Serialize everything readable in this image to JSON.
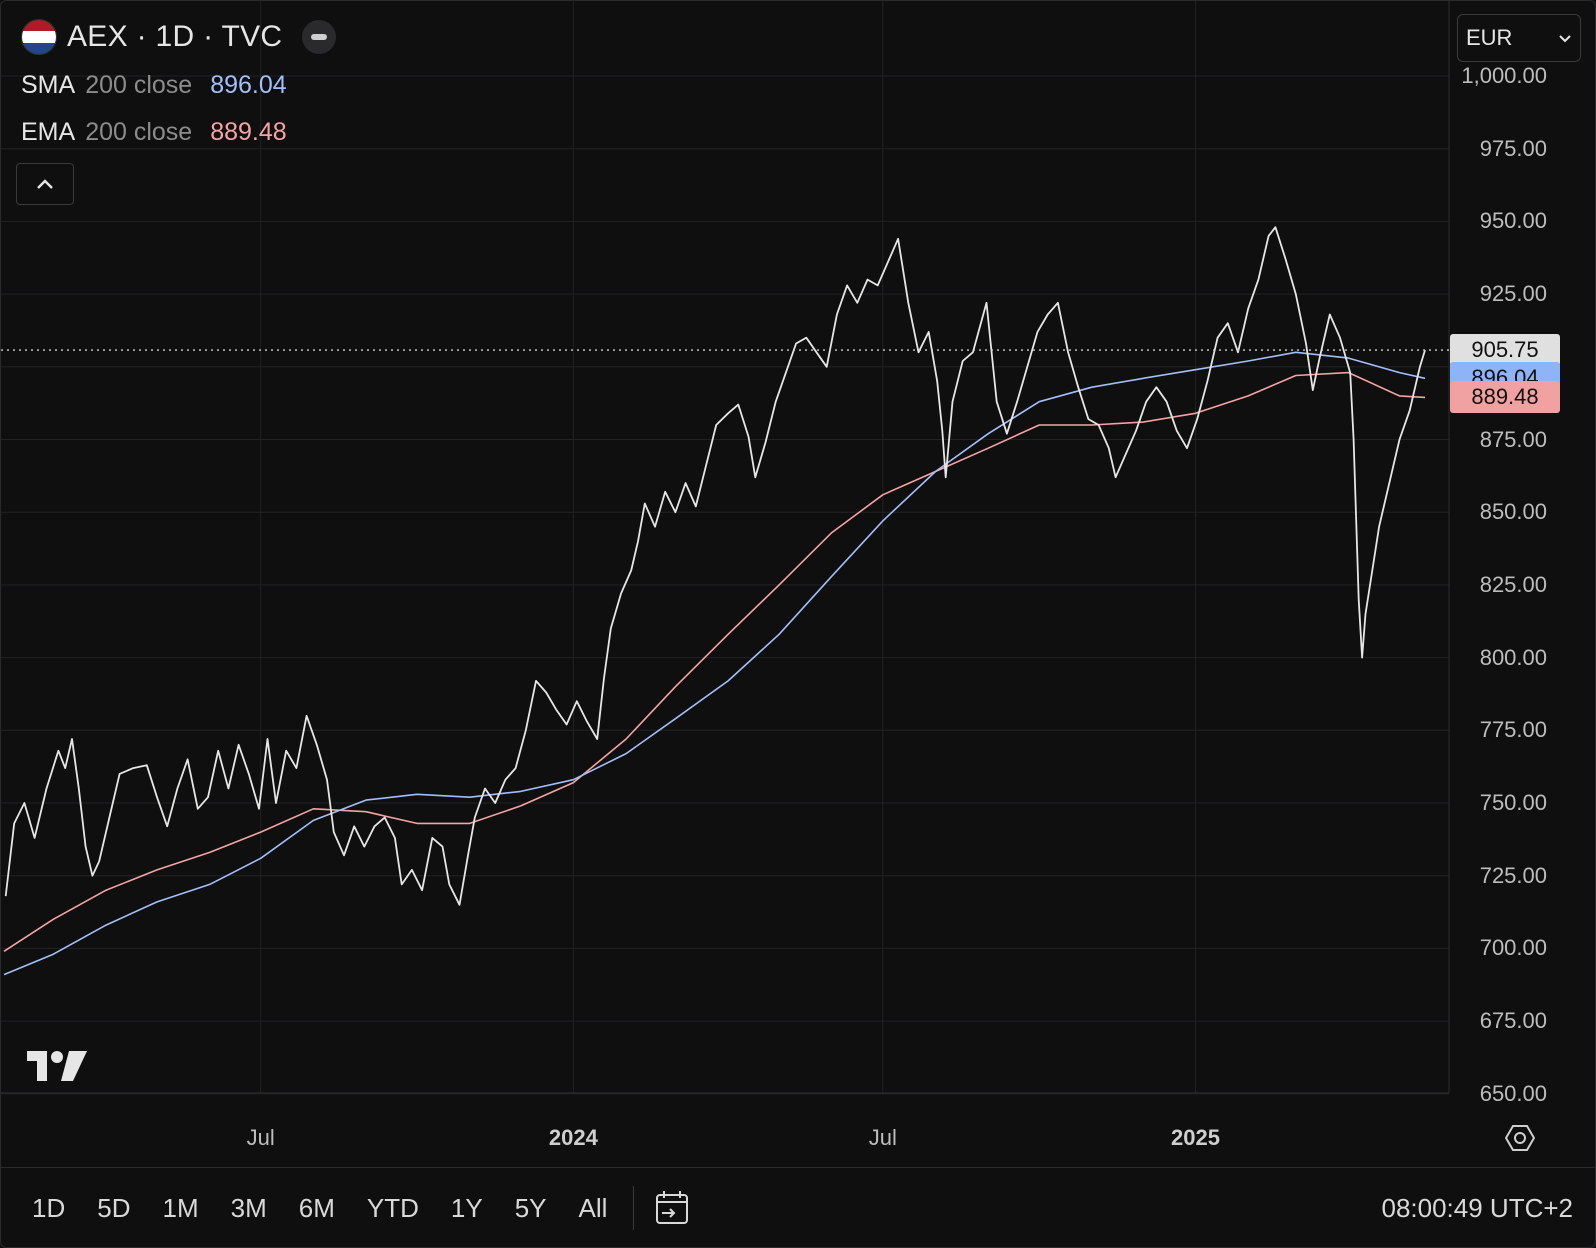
{
  "header": {
    "symbol_title": "AEX · 1D · TVC",
    "flag_colors": [
      "#ae1c28",
      "#ffffff",
      "#21468b"
    ]
  },
  "indicators": [
    {
      "name": "SMA",
      "params": "200 close",
      "value": "896.04",
      "color": "#a3bffa"
    },
    {
      "name": "EMA",
      "params": "200 close",
      "value": "889.48",
      "color": "#f5a3a3"
    }
  ],
  "currency_select": {
    "value": "EUR"
  },
  "bottom_toolbar": {
    "ranges": [
      "1D",
      "5D",
      "1M",
      "3M",
      "6M",
      "YTD",
      "1Y",
      "5Y",
      "All"
    ],
    "clock": "08:00:49 UTC+2"
  },
  "chart_data": {
    "type": "line",
    "x_axis_labels": [
      {
        "text": "Jul",
        "date": "2023-07-01",
        "major": false
      },
      {
        "text": "2024",
        "date": "2024-01-01",
        "major": true
      },
      {
        "text": "Jul",
        "date": "2024-07-01",
        "major": false
      },
      {
        "text": "2025",
        "date": "2025-01-01",
        "major": true
      }
    ],
    "x_range": [
      "2023-01-31",
      "2025-05-16"
    ],
    "y_ticks": [
      "1,000.00",
      "975.00",
      "950.00",
      "925.00",
      "900.00",
      "875.00",
      "850.00",
      "825.00",
      "800.00",
      "775.00",
      "750.00",
      "725.00",
      "700.00",
      "675.00",
      "650.00"
    ],
    "y_range": [
      646.5,
      1012
    ],
    "grid": true,
    "last_price_label": {
      "value": "905.75",
      "bg": "#e0e0e0",
      "fg": "#111111"
    },
    "series": [
      {
        "name": "AEX",
        "color": "#e6e6e6",
        "points": [
          [
            "2023-02-01",
            718
          ],
          [
            "2023-02-06",
            743
          ],
          [
            "2023-02-12",
            750
          ],
          [
            "2023-02-18",
            738
          ],
          [
            "2023-02-25",
            755
          ],
          [
            "2023-03-04",
            768
          ],
          [
            "2023-03-08",
            762
          ],
          [
            "2023-03-12",
            772
          ],
          [
            "2023-03-16",
            755
          ],
          [
            "2023-03-20",
            735
          ],
          [
            "2023-03-24",
            725
          ],
          [
            "2023-03-28",
            730
          ],
          [
            "2023-04-03",
            745
          ],
          [
            "2023-04-09",
            760
          ],
          [
            "2023-04-17",
            762
          ],
          [
            "2023-04-25",
            763
          ],
          [
            "2023-05-01",
            752
          ],
          [
            "2023-05-07",
            742
          ],
          [
            "2023-05-13",
            755
          ],
          [
            "2023-05-19",
            765
          ],
          [
            "2023-05-25",
            748
          ],
          [
            "2023-05-31",
            752
          ],
          [
            "2023-06-06",
            768
          ],
          [
            "2023-06-12",
            755
          ],
          [
            "2023-06-18",
            770
          ],
          [
            "2023-06-24",
            760
          ],
          [
            "2023-06-30",
            748
          ],
          [
            "2023-07-05",
            772
          ],
          [
            "2023-07-10",
            750
          ],
          [
            "2023-07-16",
            768
          ],
          [
            "2023-07-22",
            762
          ],
          [
            "2023-07-28",
            780
          ],
          [
            "2023-08-03",
            770
          ],
          [
            "2023-08-09",
            758
          ],
          [
            "2023-08-13",
            740
          ],
          [
            "2023-08-19",
            732
          ],
          [
            "2023-08-25",
            742
          ],
          [
            "2023-08-31",
            735
          ],
          [
            "2023-09-06",
            742
          ],
          [
            "2023-09-12",
            745
          ],
          [
            "2023-09-18",
            738
          ],
          [
            "2023-09-22",
            722
          ],
          [
            "2023-09-28",
            727
          ],
          [
            "2023-10-04",
            720
          ],
          [
            "2023-10-10",
            738
          ],
          [
            "2023-10-16",
            735
          ],
          [
            "2023-10-20",
            722
          ],
          [
            "2023-10-26",
            715
          ],
          [
            "2023-10-31",
            732
          ],
          [
            "2023-11-04",
            745
          ],
          [
            "2023-11-10",
            755
          ],
          [
            "2023-11-16",
            750
          ],
          [
            "2023-11-22",
            758
          ],
          [
            "2023-11-28",
            762
          ],
          [
            "2023-12-04",
            775
          ],
          [
            "2023-12-10",
            792
          ],
          [
            "2023-12-16",
            788
          ],
          [
            "2023-12-22",
            782
          ],
          [
            "2023-12-28",
            777
          ],
          [
            "2024-01-03",
            785
          ],
          [
            "2024-01-09",
            778
          ],
          [
            "2024-01-15",
            772
          ],
          [
            "2024-01-19",
            793
          ],
          [
            "2024-01-23",
            810
          ],
          [
            "2024-01-29",
            822
          ],
          [
            "2024-02-04",
            830
          ],
          [
            "2024-02-08",
            840
          ],
          [
            "2024-02-12",
            853
          ],
          [
            "2024-02-18",
            845
          ],
          [
            "2024-02-24",
            857
          ],
          [
            "2024-03-01",
            850
          ],
          [
            "2024-03-07",
            860
          ],
          [
            "2024-03-13",
            852
          ],
          [
            "2024-03-19",
            866
          ],
          [
            "2024-03-25",
            880
          ],
          [
            "2024-04-01",
            884
          ],
          [
            "2024-04-07",
            887
          ],
          [
            "2024-04-13",
            876
          ],
          [
            "2024-04-17",
            862
          ],
          [
            "2024-04-23",
            874
          ],
          [
            "2024-04-29",
            888
          ],
          [
            "2024-05-05",
            898
          ],
          [
            "2024-05-11",
            908
          ],
          [
            "2024-05-17",
            910
          ],
          [
            "2024-05-23",
            905
          ],
          [
            "2024-05-29",
            900
          ],
          [
            "2024-06-04",
            918
          ],
          [
            "2024-06-10",
            928
          ],
          [
            "2024-06-16",
            922
          ],
          [
            "2024-06-22",
            930
          ],
          [
            "2024-06-28",
            928
          ],
          [
            "2024-07-04",
            936
          ],
          [
            "2024-07-10",
            944
          ],
          [
            "2024-07-16",
            922
          ],
          [
            "2024-07-22",
            905
          ],
          [
            "2024-07-28",
            912
          ],
          [
            "2024-08-02",
            895
          ],
          [
            "2024-08-05",
            878
          ],
          [
            "2024-08-07",
            862
          ],
          [
            "2024-08-11",
            888
          ],
          [
            "2024-08-17",
            902
          ],
          [
            "2024-08-23",
            905
          ],
          [
            "2024-08-31",
            922
          ],
          [
            "2024-09-06",
            888
          ],
          [
            "2024-09-12",
            877
          ],
          [
            "2024-09-18",
            888
          ],
          [
            "2024-09-24",
            900
          ],
          [
            "2024-09-30",
            912
          ],
          [
            "2024-10-06",
            918
          ],
          [
            "2024-10-12",
            922
          ],
          [
            "2024-10-18",
            905
          ],
          [
            "2024-10-24",
            893
          ],
          [
            "2024-10-30",
            882
          ],
          [
            "2024-11-05",
            880
          ],
          [
            "2024-11-11",
            872
          ],
          [
            "2024-11-15",
            862
          ],
          [
            "2024-11-21",
            870
          ],
          [
            "2024-11-27",
            878
          ],
          [
            "2024-12-03",
            888
          ],
          [
            "2024-12-09",
            893
          ],
          [
            "2024-12-15",
            888
          ],
          [
            "2024-12-21",
            878
          ],
          [
            "2024-12-27",
            872
          ],
          [
            "2025-01-02",
            882
          ],
          [
            "2025-01-08",
            895
          ],
          [
            "2025-01-14",
            910
          ],
          [
            "2025-01-20",
            915
          ],
          [
            "2025-01-26",
            905
          ],
          [
            "2025-02-01",
            920
          ],
          [
            "2025-02-07",
            930
          ],
          [
            "2025-02-13",
            945
          ],
          [
            "2025-02-17",
            948
          ],
          [
            "2025-02-23",
            937
          ],
          [
            "2025-03-01",
            925
          ],
          [
            "2025-03-07",
            908
          ],
          [
            "2025-03-11",
            892
          ],
          [
            "2025-03-15",
            903
          ],
          [
            "2025-03-21",
            918
          ],
          [
            "2025-03-27",
            910
          ],
          [
            "2025-04-02",
            898
          ],
          [
            "2025-04-04",
            875
          ],
          [
            "2025-04-07",
            820
          ],
          [
            "2025-04-09",
            800
          ],
          [
            "2025-04-11",
            815
          ],
          [
            "2025-04-15",
            830
          ],
          [
            "2025-04-19",
            845
          ],
          [
            "2025-04-25",
            860
          ],
          [
            "2025-05-01",
            875
          ],
          [
            "2025-05-07",
            885
          ],
          [
            "2025-05-13",
            900
          ],
          [
            "2025-05-16",
            905.75
          ]
        ]
      },
      {
        "name": "SMA 200 close",
        "color": "#a3bffa",
        "points": [
          [
            "2023-01-31",
            691
          ],
          [
            "2023-03-01",
            698
          ],
          [
            "2023-04-01",
            708
          ],
          [
            "2023-05-01",
            716
          ],
          [
            "2023-06-01",
            722
          ],
          [
            "2023-07-01",
            731
          ],
          [
            "2023-08-01",
            744
          ],
          [
            "2023-09-01",
            751
          ],
          [
            "2023-10-01",
            753
          ],
          [
            "2023-11-01",
            752
          ],
          [
            "2023-12-01",
            754
          ],
          [
            "2024-01-01",
            758
          ],
          [
            "2024-02-01",
            767
          ],
          [
            "2024-03-01",
            779
          ],
          [
            "2024-04-01",
            792
          ],
          [
            "2024-05-01",
            808
          ],
          [
            "2024-06-01",
            828
          ],
          [
            "2024-07-01",
            847
          ],
          [
            "2024-08-01",
            864
          ],
          [
            "2024-09-01",
            877
          ],
          [
            "2024-10-01",
            888
          ],
          [
            "2024-11-01",
            893
          ],
          [
            "2024-12-01",
            896
          ],
          [
            "2025-01-01",
            899
          ],
          [
            "2025-02-01",
            902
          ],
          [
            "2025-03-01",
            905
          ],
          [
            "2025-04-01",
            903
          ],
          [
            "2025-05-01",
            898
          ],
          [
            "2025-05-16",
            896.04
          ]
        ]
      },
      {
        "name": "EMA 200 close",
        "color": "#f5a3a3",
        "points": [
          [
            "2023-01-31",
            699
          ],
          [
            "2023-03-01",
            710
          ],
          [
            "2023-04-01",
            720
          ],
          [
            "2023-05-01",
            727
          ],
          [
            "2023-06-01",
            733
          ],
          [
            "2023-07-01",
            740
          ],
          [
            "2023-08-01",
            748
          ],
          [
            "2023-09-01",
            747
          ],
          [
            "2023-10-01",
            743
          ],
          [
            "2023-11-01",
            743
          ],
          [
            "2023-12-01",
            749
          ],
          [
            "2024-01-01",
            757
          ],
          [
            "2024-02-01",
            772
          ],
          [
            "2024-03-01",
            790
          ],
          [
            "2024-04-01",
            808
          ],
          [
            "2024-05-01",
            825
          ],
          [
            "2024-06-01",
            843
          ],
          [
            "2024-07-01",
            856
          ],
          [
            "2024-08-01",
            864
          ],
          [
            "2024-09-01",
            872
          ],
          [
            "2024-10-01",
            880
          ],
          [
            "2024-11-01",
            880
          ],
          [
            "2024-12-01",
            881
          ],
          [
            "2025-01-01",
            884
          ],
          [
            "2025-02-01",
            890
          ],
          [
            "2025-03-01",
            897
          ],
          [
            "2025-04-01",
            898
          ],
          [
            "2025-05-01",
            890
          ],
          [
            "2025-05-16",
            889.48
          ]
        ]
      }
    ]
  }
}
